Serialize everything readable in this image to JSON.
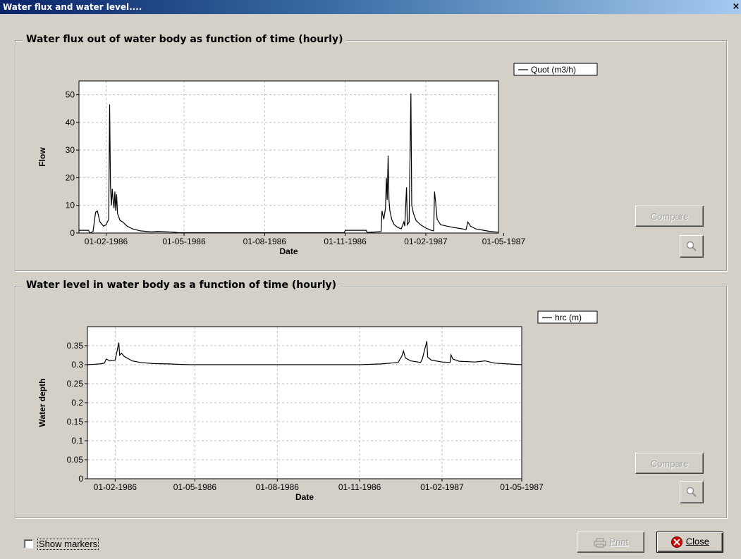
{
  "window": {
    "title": "Water flux and water level....",
    "close_glyph": "×"
  },
  "panels": [
    {
      "title": "Water flux out of water body as function of time (hourly)"
    },
    {
      "title": "Water level in water body as a function of time (hourly)"
    }
  ],
  "buttons": {
    "compare": "Compare",
    "print": "Print",
    "close": "Close"
  },
  "checkbox": {
    "label": "Show markers",
    "checked": false
  },
  "icons": [
    "magnifier-icon",
    "printer-icon",
    "close-circle-icon"
  ],
  "chart_data": [
    {
      "type": "line",
      "xlabel": "Date",
      "ylabel": "Flow",
      "x_ticks": [
        "01-02-1986",
        "01-05-1986",
        "01-08-1986",
        "01-11-1986",
        "01-02-1987",
        "01-05-1987"
      ],
      "xlim": [
        "1986-01-01",
        "1987-04-25"
      ],
      "ylim": [
        0,
        55
      ],
      "y_ticks": [
        0,
        10,
        20,
        30,
        40,
        50
      ],
      "grid": true,
      "legend": "top-right",
      "series": [
        {
          "name": "Quot (m3/h)",
          "color": "#000000",
          "points": [
            [
              "1986-01-01",
              1.0
            ],
            [
              "1986-01-12",
              1.0
            ],
            [
              "1986-01-13",
              0
            ],
            [
              "1986-01-17",
              0.5
            ],
            [
              "1986-01-20",
              7.5
            ],
            [
              "1986-01-22",
              8.0
            ],
            [
              "1986-01-25",
              4.0
            ],
            [
              "1986-01-29",
              2.5
            ],
            [
              "1986-02-01",
              3.0
            ],
            [
              "1986-02-04",
              5.0
            ],
            [
              "1986-02-05",
              46.5
            ],
            [
              "1986-02-06",
              17.0
            ],
            [
              "1986-02-07",
              10.0
            ],
            [
              "1986-02-08",
              16.0
            ],
            [
              "1986-02-09",
              12.0
            ],
            [
              "1986-02-10",
              9.0
            ],
            [
              "1986-02-11",
              15.0
            ],
            [
              "1986-02-12",
              8.0
            ],
            [
              "1986-02-13",
              14.0
            ],
            [
              "1986-02-14",
              7.0
            ],
            [
              "1986-02-17",
              4.5
            ],
            [
              "1986-02-20",
              4.0
            ],
            [
              "1986-02-25",
              2.5
            ],
            [
              "1986-03-03",
              1.5
            ],
            [
              "1986-03-12",
              0.8
            ],
            [
              "1986-03-25",
              0.4
            ],
            [
              "1986-04-01",
              0.6
            ],
            [
              "1986-04-20",
              0.3
            ],
            [
              "1986-04-25",
              0.1
            ],
            [
              "1986-10-31",
              0.1
            ],
            [
              "1986-11-01",
              1.0
            ],
            [
              "1986-11-25",
              1.0
            ],
            [
              "1986-11-26",
              0.2
            ],
            [
              "1986-12-12",
              0.5
            ],
            [
              "1986-12-13",
              8.0
            ],
            [
              "1986-12-15",
              5.0
            ],
            [
              "1986-12-17",
              9.0
            ],
            [
              "1986-12-18",
              20.0
            ],
            [
              "1986-12-19",
              12.0
            ],
            [
              "1986-12-20",
              28.0
            ],
            [
              "1986-12-21",
              12.0
            ],
            [
              "1986-12-22",
              8.0
            ],
            [
              "1986-12-24",
              5.0
            ],
            [
              "1986-12-27",
              3.0
            ],
            [
              "1986-12-31",
              2.0
            ],
            [
              "1987-01-04",
              1.5
            ],
            [
              "1987-01-07",
              4.0
            ],
            [
              "1987-01-08",
              2.5
            ],
            [
              "1987-01-10",
              16.5
            ],
            [
              "1987-01-11",
              3.0
            ],
            [
              "1987-01-13",
              4.0
            ],
            [
              "1987-01-15",
              50.5
            ],
            [
              "1987-01-16",
              10.0
            ],
            [
              "1987-01-18",
              7.0
            ],
            [
              "1987-01-21",
              4.5
            ],
            [
              "1987-01-26",
              3.0
            ],
            [
              "1987-02-01",
              1.8
            ],
            [
              "1987-02-07",
              1.0
            ],
            [
              "1987-02-10",
              0.8
            ],
            [
              "1987-02-11",
              15.0
            ],
            [
              "1987-02-12",
              12.0
            ],
            [
              "1987-02-14",
              5.0
            ],
            [
              "1987-02-18",
              3.0
            ],
            [
              "1987-02-25",
              2.5
            ],
            [
              "1987-03-05",
              2.0
            ],
            [
              "1987-03-15",
              1.5
            ],
            [
              "1987-03-19",
              1.2
            ],
            [
              "1987-03-21",
              4.0
            ],
            [
              "1987-03-24",
              2.5
            ],
            [
              "1987-03-30",
              1.5
            ],
            [
              "1987-04-08",
              1.0
            ],
            [
              "1987-04-15",
              0.6
            ],
            [
              "1987-04-25",
              0.3
            ]
          ]
        }
      ]
    },
    {
      "type": "line",
      "xlabel": "Date",
      "ylabel": "Water depth",
      "x_ticks": [
        "01-02-1986",
        "01-05-1986",
        "01-08-1986",
        "01-11-1986",
        "01-02-1987",
        "01-05-1987"
      ],
      "xlim": [
        "1986-01-01",
        "1987-05-01"
      ],
      "ylim": [
        0,
        0.4
      ],
      "y_ticks": [
        0,
        0.05,
        0.1,
        0.15,
        0.2,
        0.25,
        0.3,
        0.35
      ],
      "grid": true,
      "legend": "top-right",
      "series": [
        {
          "name": "hrc (m)",
          "color": "#000000",
          "points": [
            [
              "1986-01-01",
              0.3
            ],
            [
              "1986-01-15",
              0.302
            ],
            [
              "1986-01-20",
              0.304
            ],
            [
              "1986-01-22",
              0.315
            ],
            [
              "1986-01-26",
              0.31
            ],
            [
              "1986-02-01",
              0.312
            ],
            [
              "1986-02-05",
              0.358
            ],
            [
              "1986-02-06",
              0.325
            ],
            [
              "1986-02-08",
              0.33
            ],
            [
              "1986-02-11",
              0.322
            ],
            [
              "1986-02-14",
              0.318
            ],
            [
              "1986-02-20",
              0.31
            ],
            [
              "1986-03-01",
              0.306
            ],
            [
              "1986-03-15",
              0.303
            ],
            [
              "1986-04-01",
              0.302
            ],
            [
              "1986-04-25",
              0.3
            ],
            [
              "1986-11-01",
              0.3
            ],
            [
              "1986-11-25",
              0.302
            ],
            [
              "1986-12-14",
              0.306
            ],
            [
              "1986-12-18",
              0.322
            ],
            [
              "1986-12-20",
              0.336
            ],
            [
              "1986-12-22",
              0.318
            ],
            [
              "1986-12-28",
              0.31
            ],
            [
              "1987-01-08",
              0.306
            ],
            [
              "1987-01-10",
              0.315
            ],
            [
              "1987-01-15",
              0.362
            ],
            [
              "1987-01-16",
              0.32
            ],
            [
              "1987-01-20",
              0.312
            ],
            [
              "1987-02-01",
              0.307
            ],
            [
              "1987-02-10",
              0.306
            ],
            [
              "1987-02-11",
              0.326
            ],
            [
              "1987-02-13",
              0.315
            ],
            [
              "1987-02-20",
              0.309
            ],
            [
              "1987-03-10",
              0.307
            ],
            [
              "1987-03-21",
              0.31
            ],
            [
              "1987-04-01",
              0.304
            ],
            [
              "1987-05-01",
              0.3
            ]
          ]
        }
      ]
    }
  ]
}
